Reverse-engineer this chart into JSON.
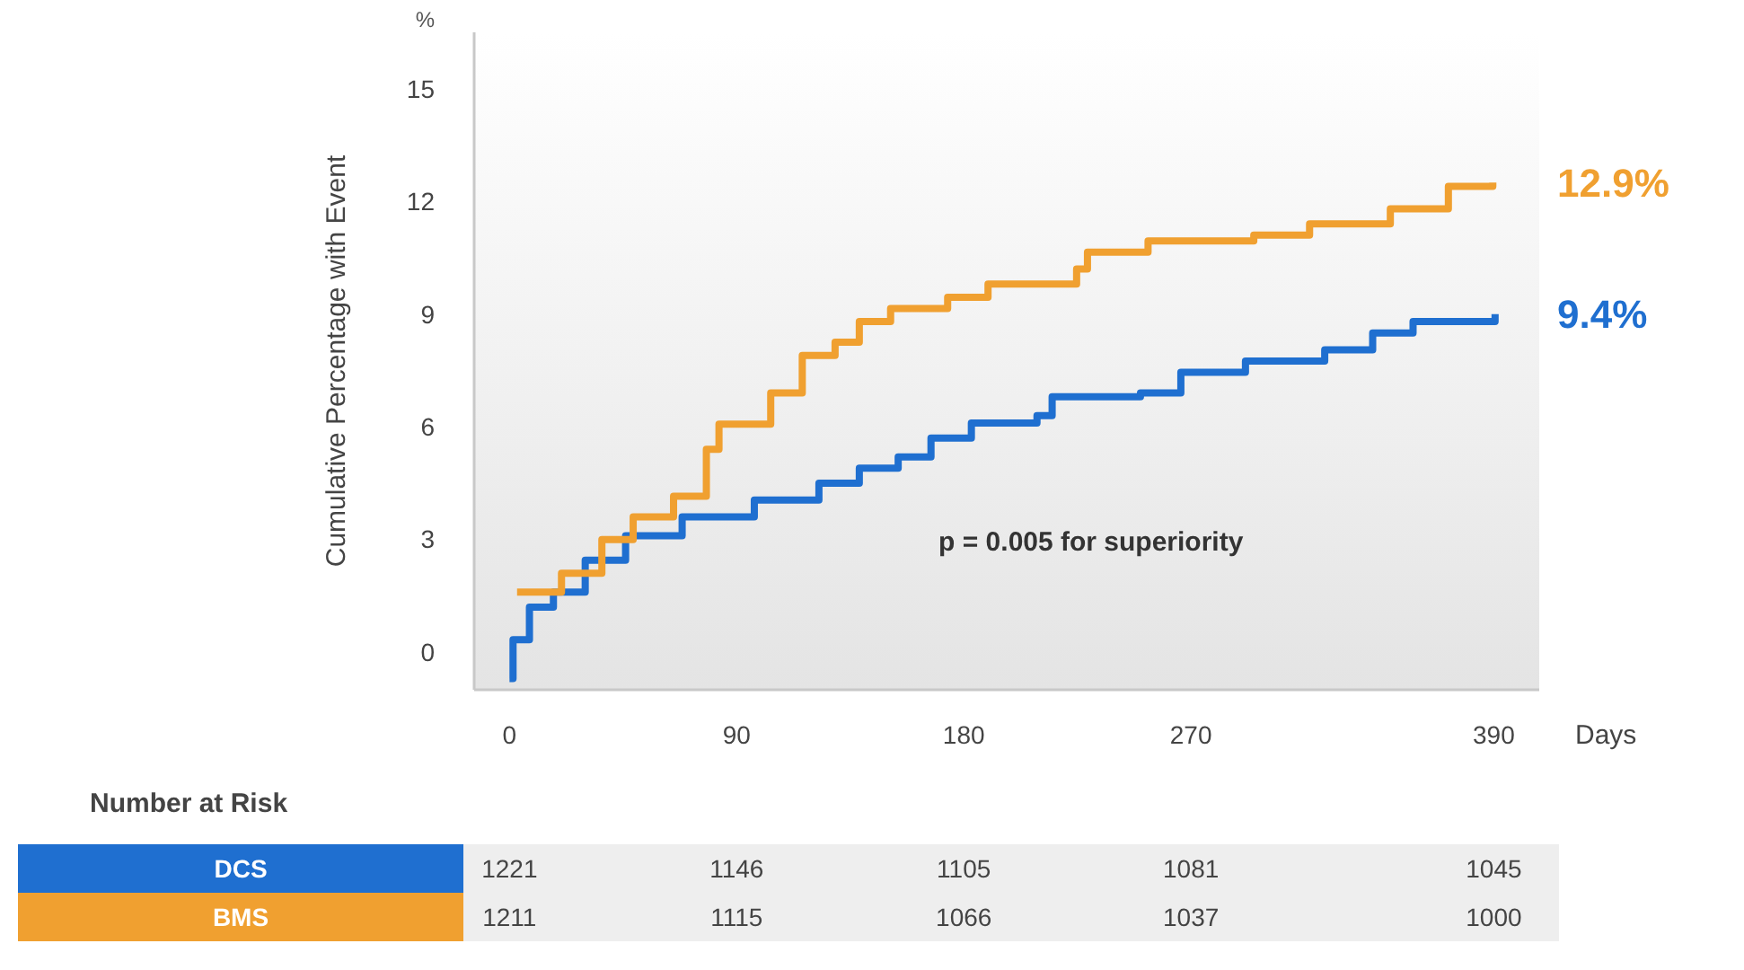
{
  "chart_data": {
    "type": "step",
    "ylabel": "Cumulative Percentage with Event",
    "xlabel": "Days",
    "xlim": [
      -14,
      408
    ],
    "xticks": [
      0,
      90,
      180,
      270,
      390
    ],
    "ylim": [
      -1,
      16.5
    ],
    "yticks": [
      0,
      3,
      6,
      9,
      12,
      15
    ],
    "grid": false,
    "legend": "bottom left",
    "line_style": "solid",
    "marker": "none",
    "annotations": [
      "%",
      "p = 0.005 for superiority",
      "Number at Risk",
      "9.4%",
      "12.9%",
      "1221",
      "1146",
      "1105",
      "1081",
      "1045",
      "1211",
      "1115",
      "1066",
      "1037",
      "1000"
    ],
    "series": [
      {
        "name": "DCS",
        "color": "#1f6fd0",
        "x": [
          0,
          1.4,
          7.9,
          17.4,
          30,
          46,
          68.4,
          97,
          122.6,
          138.6,
          154,
          167,
          183,
          209,
          215,
          250,
          266,
          291.6,
          323,
          342,
          358,
          390.5
        ],
        "values": [
          -0.7,
          0.33,
          1.2,
          1.6,
          2.45,
          3.1,
          3.6,
          4.05,
          4.5,
          4.9,
          5.2,
          5.7,
          6.1,
          6.3,
          6.8,
          6.9,
          7.45,
          7.75,
          8.05,
          8.5,
          8.8,
          9.0
        ]
      },
      {
        "name": "BMS",
        "color": "#f0a030",
        "x": [
          3,
          20.6,
          36.6,
          49,
          65,
          78,
          83,
          103.5,
          116,
          129,
          138.6,
          151,
          173.6,
          189.6,
          224.7,
          229,
          253,
          294.9,
          317,
          349,
          372,
          389.6
        ],
        "values": [
          1.6,
          2.1,
          3.0,
          3.6,
          4.15,
          5.4,
          6.07,
          6.9,
          7.9,
          8.25,
          8.8,
          9.15,
          9.45,
          9.8,
          10.2,
          10.65,
          10.95,
          11.1,
          11.4,
          11.8,
          12.4,
          12.5
        ]
      }
    ]
  }
}
